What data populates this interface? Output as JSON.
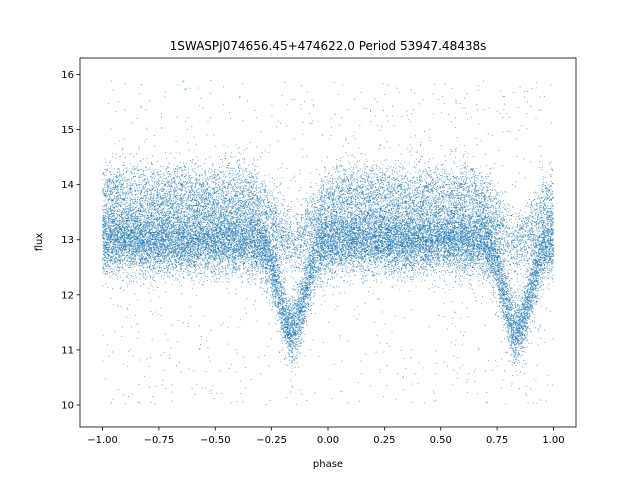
{
  "chart_data": {
    "type": "scatter",
    "title": "1SWASPJ074656.45+474622.0 Period 53947.48438s",
    "xlabel": "phase",
    "ylabel": "flux",
    "xlim": [
      -1.1,
      1.1
    ],
    "ylim": [
      9.6,
      16.3
    ],
    "x_ticks": [
      -1.0,
      -0.75,
      -0.5,
      -0.25,
      0.0,
      0.25,
      0.5,
      0.75,
      1.0
    ],
    "x_tick_labels": [
      "−1.00",
      "−0.75",
      "−0.50",
      "−0.25",
      "0.00",
      "0.25",
      "0.50",
      "0.75",
      "1.00"
    ],
    "y_ticks": [
      10,
      11,
      12,
      13,
      14,
      15,
      16
    ],
    "y_tick_labels": [
      "10",
      "11",
      "12",
      "13",
      "14",
      "15",
      "16"
    ],
    "grid": false,
    "legend": "none",
    "marker_color": "#1f77b4",
    "series": [
      {
        "x_range": [
          -1.0,
          1.0
        ],
        "baseline_flux": 13.0,
        "main_band_spread": 0.3,
        "upper_band_flux": 13.8,
        "upper_band_spread": 0.3,
        "eclipses": [
          {
            "phase": -0.16,
            "min_flux": 11.35,
            "width": 0.08
          },
          {
            "phase": 0.84,
            "min_flux": 11.35,
            "width": 0.08
          }
        ],
        "outlier_range": [
          10.0,
          15.9
        ],
        "approx_points": 30000
      }
    ]
  }
}
